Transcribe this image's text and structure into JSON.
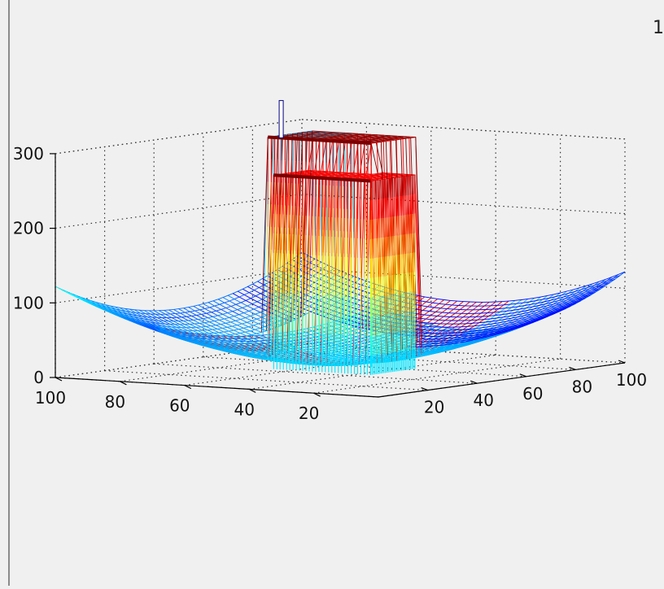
{
  "figure": {
    "corner_text": "1"
  },
  "chart_data": {
    "type": "surface",
    "title": "",
    "xlabel": "",
    "ylabel": "",
    "zlabel": "",
    "x_ticks": [
      20,
      40,
      60,
      80,
      100
    ],
    "y_ticks": [
      20,
      40,
      60,
      80,
      100
    ],
    "z_ticks": [
      0,
      100,
      200,
      300
    ],
    "z_tick_labels": [
      "0",
      "100",
      "200",
      "300"
    ],
    "x_tick_labels": [
      "20",
      "40",
      "60",
      "80",
      "100"
    ],
    "y_tick_labels": [
      "20",
      "40",
      "60",
      "80",
      "100"
    ],
    "xlim": [
      0,
      100
    ],
    "ylim": [
      0,
      100
    ],
    "zlim": [
      0,
      300
    ],
    "grid": true,
    "colormap": "jet",
    "description_values": {
      "corner_height": 122,
      "floor_height": 8,
      "block_back_height": 300,
      "block_front_height": 260,
      "spike_height": 350
    },
    "colors": {
      "low": "#00ffff",
      "mid": "#ffff00",
      "high": "#8b0000",
      "side_blue": "#0000cc"
    }
  }
}
